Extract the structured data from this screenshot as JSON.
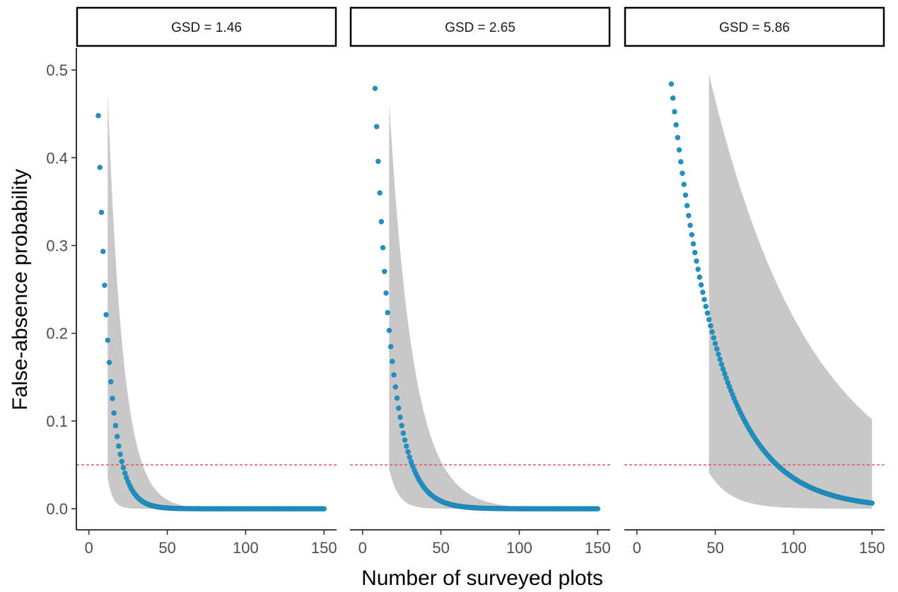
{
  "chart_data": {
    "type": "scatter",
    "xlabel": "Number of surveyed plots",
    "ylabel": "False-absence probability",
    "xlim": [
      -8,
      158
    ],
    "ylim": [
      -0.024,
      0.525
    ],
    "x_ticks": [
      0,
      50,
      100,
      150
    ],
    "y_ticks": [
      0.0,
      0.1,
      0.2,
      0.3,
      0.4,
      0.5
    ],
    "x_tick_labels": [
      "0",
      "50",
      "100",
      "150"
    ],
    "y_tick_labels": [
      "0.0",
      "0.1",
      "0.2",
      "0.3",
      "0.4",
      "0.5"
    ],
    "reference_line_y": 0.05,
    "grid": false,
    "colors": {
      "points": "#1b93c4",
      "ribbon": "#c8c8c8",
      "reference_line": "#e34a4a"
    },
    "panels": [
      {
        "label": "GSD = 1.46",
        "points": {
          "x_start": 6,
          "x_end": 150,
          "y_start": 0.448,
          "rate": 0.1412
        },
        "ribbon": {
          "x_start": 12,
          "x_end": 150,
          "upper_start": 0.474,
          "upper_rate": 0.101,
          "lower_start": 0.035,
          "lower_rate": 0.3
        }
      },
      {
        "label": "GSD = 2.65",
        "points": {
          "x_start": 8,
          "x_end": 150,
          "y_start": 0.479,
          "rate": 0.0953
        },
        "ribbon": {
          "x_start": 17,
          "x_end": 150,
          "upper_start": 0.463,
          "upper_rate": 0.065,
          "lower_start": 0.045,
          "lower_rate": 0.17
        }
      },
      {
        "label": "GSD = 5.86",
        "points": {
          "x_start": 22,
          "x_end": 150,
          "y_start": 0.484,
          "rate": 0.0337
        },
        "ribbon": {
          "x_start": 46,
          "x_end": 150,
          "upper_start": 0.495,
          "upper_rate": 0.0152,
          "lower_start": 0.041,
          "lower_rate": 0.07
        }
      }
    ]
  }
}
